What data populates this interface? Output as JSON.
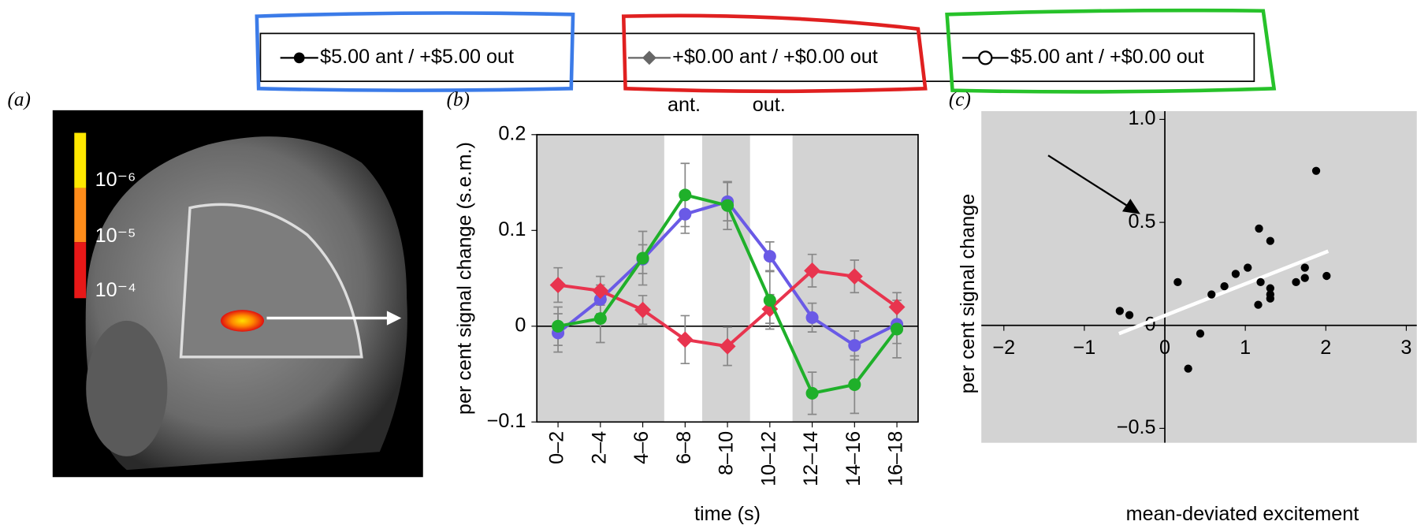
{
  "panel_labels": [
    "(a)",
    "(b)",
    "(c)"
  ],
  "colorbar_labels": [
    "10⁻⁶",
    "10⁻⁵",
    "10⁻⁴"
  ],
  "chart_data": [
    {
      "type": "line",
      "annotations": [
        "ant.",
        "out."
      ],
      "x_label": "time (s)",
      "y_label": "per cent signal change (s.e.m.)",
      "categories": [
        "0–2",
        "2–4",
        "4–6",
        "6–8",
        "8–10",
        "10–12",
        "12–14",
        "14–16",
        "16–18"
      ],
      "ylim": [
        -0.1,
        0.2
      ],
      "yticks": [
        {
          "value": -0.1,
          "label": "−0.1"
        },
        0,
        0.1,
        0.2
      ],
      "series": [
        {
          "name": "$5.00 ant / +$5.00 out",
          "color": "#6a5ae6",
          "legend_color": "#000000",
          "marker": "circle",
          "values": [
            -0.007,
            0.028,
            0.07,
            0.117,
            0.13,
            0.073,
            0.009,
            -0.02,
            0.002
          ],
          "errors": [
            0.02,
            0.015,
            0.015,
            0.02,
            0.02,
            0.015,
            0.015,
            0.015,
            0.02
          ]
        },
        {
          "name": "+$0.00 ant / +$0.00 out",
          "color": "#e8344e",
          "legend_color": "#666666",
          "marker": "diamond",
          "values": [
            0.043,
            0.037,
            0.017,
            -0.014,
            -0.021,
            0.018,
            0.058,
            0.052,
            0.02
          ],
          "errors": [
            0.018,
            0.015,
            0.015,
            0.025,
            0.02,
            0.015,
            0.017,
            0.017,
            0.015
          ]
        },
        {
          "name": "$5.00 ant / +$0.00 out",
          "color": "#1fb02a",
          "legend_color": "#000000",
          "marker": "open-circle",
          "values": [
            0,
            0.008,
            0.071,
            0.137,
            0.126,
            0.027,
            -0.07,
            -0.061,
            -0.003
          ],
          "errors": [
            0.02,
            0.025,
            0.028,
            0.033,
            0.025,
            0.03,
            0.022,
            0.03,
            0.03
          ]
        }
      ]
    },
    {
      "type": "scatter",
      "x_label": "mean-deviated excitement",
      "y_label": "per cent signal change",
      "xlim": [
        -2.28,
        3.13
      ],
      "ylim": [
        -0.57,
        1.04
      ],
      "xticks": [
        {
          "value": -2,
          "label": "−2"
        },
        {
          "value": -1,
          "label": "−1"
        },
        0,
        1,
        2,
        3
      ],
      "yticks": [
        {
          "value": -0.5,
          "label": "−0.5"
        },
        0,
        0.5,
        {
          "value": 1,
          "label": "1.0"
        }
      ],
      "color": "#000000",
      "x": [
        -0.56,
        -0.44,
        0.16,
        0.29,
        0.44,
        0.58,
        0.74,
        0.88,
        1.03,
        1.16,
        1.17,
        1.19,
        1.31,
        1.31,
        1.31,
        1.31,
        1.63,
        1.74,
        1.74,
        1.88,
        2.01
      ],
      "y": [
        0.07,
        0.05,
        0.21,
        -0.21,
        -0.04,
        0.15,
        0.19,
        0.25,
        0.28,
        0.1,
        0.47,
        0.21,
        0.41,
        0.18,
        0.15,
        0.13,
        0.21,
        0.28,
        0.23,
        0.75,
        0.24
      ],
      "fit": {
        "color": "#ffffff",
        "x": [
          -0.57,
          2.03
        ],
        "y": [
          -0.04,
          0.36
        ]
      }
    }
  ]
}
